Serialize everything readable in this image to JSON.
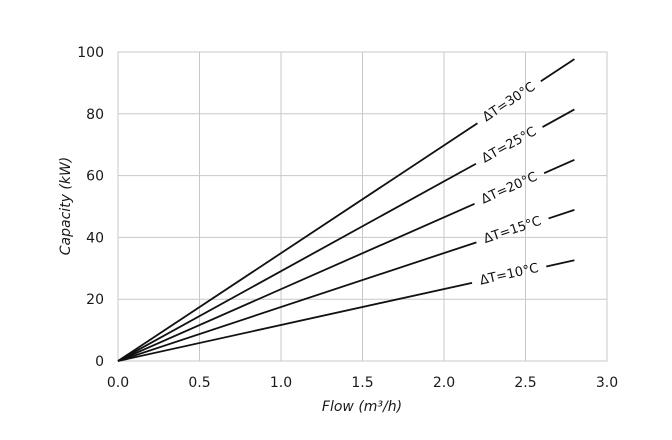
{
  "chart_data": {
    "type": "line",
    "title": "",
    "xlabel": "Flow (m³/h)",
    "ylabel": "Capacity (kW)",
    "xlim": [
      0,
      3.0
    ],
    "ylim": [
      0,
      100
    ],
    "x_ticks": [
      "0.0",
      "0.5",
      "1.0",
      "1.5",
      "2.0",
      "2.5",
      "3.0"
    ],
    "y_ticks": [
      "0",
      "20",
      "40",
      "60",
      "80",
      "100"
    ],
    "grid": true,
    "legend": "none",
    "line_color": "#111111",
    "grid_color": "#c8c8c8",
    "series": [
      {
        "name": "ΔT=10°C",
        "x": [
          0,
          2.8
        ],
        "values": [
          0,
          32.6
        ],
        "label_at": [
          2.4,
          27.9
        ]
      },
      {
        "name": "ΔT=15°C",
        "x": [
          0,
          2.8
        ],
        "values": [
          0,
          48.9
        ],
        "label_at": [
          2.42,
          42.3
        ]
      },
      {
        "name": "ΔT=20°C",
        "x": [
          0,
          2.8
        ],
        "values": [
          0,
          65.1
        ],
        "label_at": [
          2.4,
          55.9
        ]
      },
      {
        "name": "ΔT=25°C",
        "x": [
          0,
          2.8
        ],
        "values": [
          0,
          81.4
        ],
        "label_at": [
          2.4,
          69.8
        ]
      },
      {
        "name": "ΔT=30°C",
        "x": [
          0,
          2.8
        ],
        "values": [
          0,
          97.7
        ],
        "label_at": [
          2.4,
          83.7
        ]
      }
    ]
  }
}
